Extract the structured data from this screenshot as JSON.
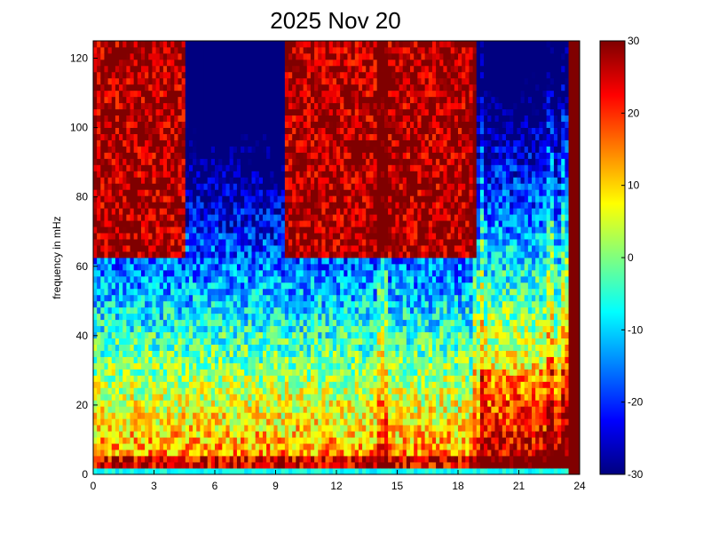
{
  "chart_data": {
    "type": "heatmap",
    "title": "2025 Nov 20",
    "xlabel": "",
    "ylabel": "frequency in mHz",
    "xlim": [
      0,
      24
    ],
    "ylim": [
      0,
      125
    ],
    "x_ticks": [
      "0",
      "3",
      "6",
      "9",
      "12",
      "15",
      "18",
      "21",
      "24"
    ],
    "y_ticks": [
      "0",
      "20",
      "40",
      "60",
      "80",
      "100",
      "120"
    ],
    "colorbar": {
      "range": [
        -30,
        30
      ],
      "ticks": [
        "-30",
        "-20",
        "-10",
        "0",
        "10",
        "20",
        "30"
      ],
      "colormap": "jet"
    },
    "grid": false,
    "description_of_field": {
      "noise_floor_band_mHz": [
        0,
        1
      ],
      "strong_low_band_mHz": [
        2,
        6
      ],
      "bright_spectral_lines_hours": [
        14.3,
        19.0,
        22.5,
        23.3
      ],
      "disturbed_interval_hours": [
        19,
        23.5
      ],
      "saturated_after_hours": 23.5
    }
  }
}
